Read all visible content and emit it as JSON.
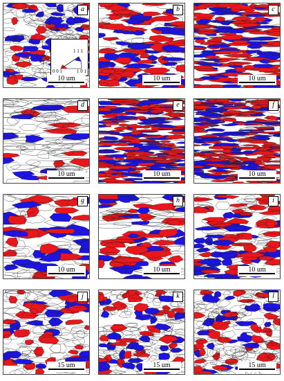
{
  "colors": {
    "red": "#e8171c",
    "blue": "#1d14e0",
    "boundary": "#1a1a1a",
    "background": "#ffffff"
  },
  "panels": [
    {
      "label": "a",
      "scale": "10 um",
      "density": 0.35
    },
    {
      "label": "b",
      "scale": "10 um",
      "density": 0.7
    },
    {
      "label": "c",
      "scale": "10 um",
      "density": 0.85
    },
    {
      "label": "d",
      "scale": "10 um",
      "density": 0.2
    },
    {
      "label": "e",
      "scale": "10 um",
      "density": 0.95
    },
    {
      "label": "f",
      "scale": "10 um",
      "density": 0.85
    },
    {
      "label": "g",
      "scale": "10 um",
      "density": 0.5
    },
    {
      "label": "h",
      "scale": "10 um",
      "density": 0.65
    },
    {
      "label": "i",
      "scale": "10 um",
      "density": 0.6
    },
    {
      "label": "j",
      "scale": "15 um",
      "density": 0.35
    },
    {
      "label": "k",
      "scale": "15 um",
      "density": 0.35
    },
    {
      "label": "l",
      "scale": "15 um",
      "density": 0.25
    }
  ],
  "legend": {
    "corner_111": "1 1 1",
    "corner_001": "0 0 1",
    "corner_101": "1 0 1"
  }
}
